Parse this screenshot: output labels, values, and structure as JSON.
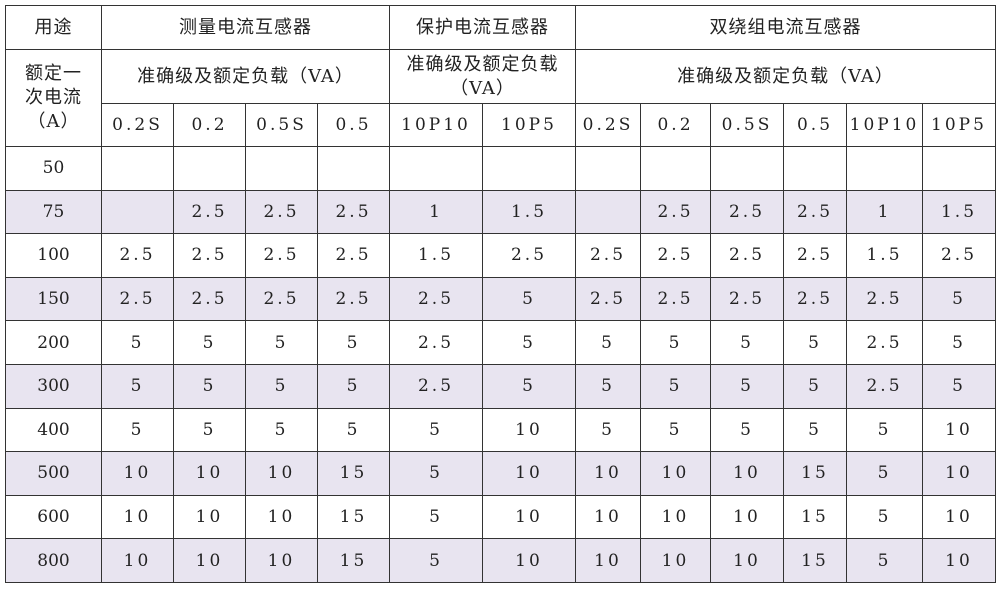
{
  "header": {
    "purpose_label": "用途",
    "current_label": "额定一次电流（A）",
    "groups": [
      "测量电流互感器",
      "保护电流互感器",
      "双绕组电流互感器"
    ],
    "sub_labels": [
      "准确级及额定负载（VA）",
      "准确级及额定负载（VA）",
      "准确级及额定负载（VA）"
    ],
    "classes": [
      "0.2S",
      "0.2",
      "0.5S",
      "0.5",
      "10P10",
      "10P5",
      "0.2S",
      "0.2",
      "0.5S",
      "0.5",
      "10P10",
      "10P5"
    ]
  },
  "colors": {
    "alt_row": "#e8e4f0",
    "border": "#333333"
  },
  "rows": [
    {
      "current": "50",
      "values": [
        "",
        "",
        "",
        "",
        "",
        "",
        "",
        "",
        "",
        "",
        "",
        ""
      ]
    },
    {
      "current": "75",
      "values": [
        "",
        "2.5",
        "2.5",
        "2.5",
        "1",
        "1.5",
        "",
        "2.5",
        "2.5",
        "2.5",
        "1",
        "1.5"
      ]
    },
    {
      "current": "100",
      "values": [
        "2.5",
        "2.5",
        "2.5",
        "2.5",
        "1.5",
        "2.5",
        "2.5",
        "2.5",
        "2.5",
        "2.5",
        "1.5",
        "2.5"
      ]
    },
    {
      "current": "150",
      "values": [
        "2.5",
        "2.5",
        "2.5",
        "2.5",
        "2.5",
        "5",
        "2.5",
        "2.5",
        "2.5",
        "2.5",
        "2.5",
        "5"
      ]
    },
    {
      "current": "200",
      "values": [
        "5",
        "5",
        "5",
        "5",
        "2.5",
        "5",
        "5",
        "5",
        "5",
        "5",
        "2.5",
        "5"
      ]
    },
    {
      "current": "300",
      "values": [
        "5",
        "5",
        "5",
        "5",
        "2.5",
        "5",
        "5",
        "5",
        "5",
        "5",
        "2.5",
        "5"
      ]
    },
    {
      "current": "400",
      "values": [
        "5",
        "5",
        "5",
        "5",
        "5",
        "10",
        "5",
        "5",
        "5",
        "5",
        "5",
        "10"
      ]
    },
    {
      "current": "500",
      "values": [
        "10",
        "10",
        "10",
        "15",
        "5",
        "10",
        "10",
        "10",
        "10",
        "15",
        "5",
        "10"
      ]
    },
    {
      "current": "600",
      "values": [
        "10",
        "10",
        "10",
        "15",
        "5",
        "10",
        "10",
        "10",
        "10",
        "15",
        "5",
        "10"
      ]
    },
    {
      "current": "800",
      "values": [
        "10",
        "10",
        "10",
        "15",
        "5",
        "10",
        "10",
        "10",
        "10",
        "15",
        "5",
        "10"
      ]
    }
  ]
}
